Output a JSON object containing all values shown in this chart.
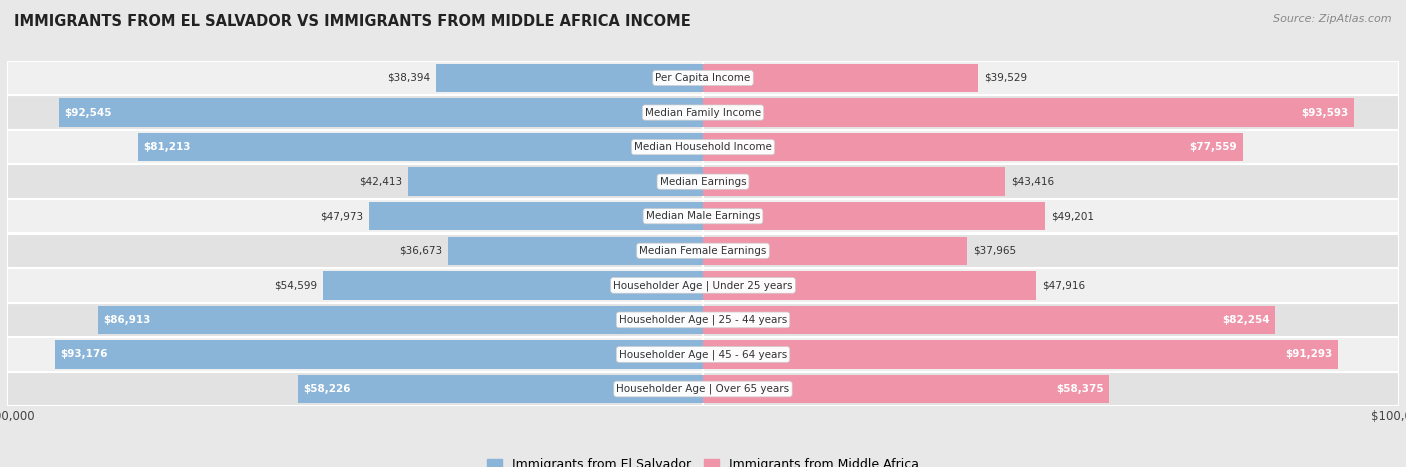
{
  "title": "IMMIGRANTS FROM EL SALVADOR VS IMMIGRANTS FROM MIDDLE AFRICA INCOME",
  "source": "Source: ZipAtlas.com",
  "categories": [
    "Per Capita Income",
    "Median Family Income",
    "Median Household Income",
    "Median Earnings",
    "Median Male Earnings",
    "Median Female Earnings",
    "Householder Age | Under 25 years",
    "Householder Age | 25 - 44 years",
    "Householder Age | 45 - 64 years",
    "Householder Age | Over 65 years"
  ],
  "el_salvador": [
    38394,
    92545,
    81213,
    42413,
    47973,
    36673,
    54599,
    86913,
    93176,
    58226
  ],
  "middle_africa": [
    39529,
    93593,
    77559,
    43416,
    49201,
    37965,
    47916,
    82254,
    91293,
    58375
  ],
  "max_value": 100000,
  "color_el_salvador": "#8ab4d8",
  "color_middle_africa": "#f094aa",
  "row_bg_light": "#f0f0f0",
  "row_bg_dark": "#e2e2e2",
  "bg_color": "#e8e8e8"
}
